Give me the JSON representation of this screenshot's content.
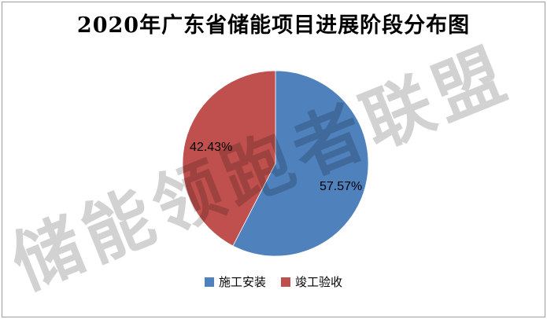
{
  "frame": {
    "border_color": "#9d9d9d",
    "background": "#ffffff"
  },
  "title": "2020年广东省储能项目进展阶段分布图",
  "watermark": {
    "text": "储能领跑者联盟",
    "color": "#d2d2d2"
  },
  "chart_data": {
    "type": "pie",
    "title": "2020年广东省储能项目进展阶段分布图",
    "categories": [
      "施工安装",
      "竣工验收"
    ],
    "values": [
      57.57,
      42.43
    ],
    "slices": [
      {
        "label": "施工安装",
        "value": 57.57,
        "display": "57.57%",
        "color": "#4F81BD"
      },
      {
        "label": "竣工验收",
        "value": 42.43,
        "display": "42.43%",
        "color": "#C0504D"
      }
    ],
    "unit": "percent",
    "start_angle": "top",
    "direction": "clockwise",
    "legend_position": "bottom",
    "data_labels": "outside-end-percent"
  }
}
